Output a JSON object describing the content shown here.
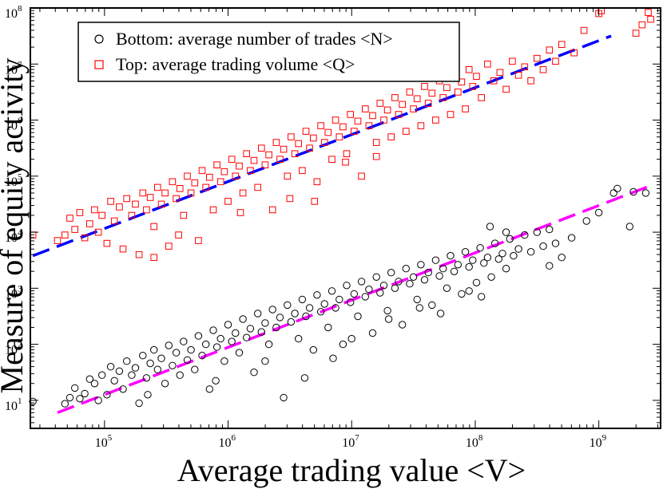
{
  "chart_data": {
    "type": "scatter",
    "xscale": "log",
    "yscale": "log",
    "xlim_exp": [
      4.4,
      9.5
    ],
    "ylim_exp": [
      0.5,
      8
    ],
    "xlabel": "Average trading value <V>",
    "ylabel": "Measure of equity activity",
    "xticks": [
      {
        "exp": 5,
        "base": "10",
        "exp_text": "5"
      },
      {
        "exp": 6,
        "base": "10",
        "exp_text": "6"
      },
      {
        "exp": 7,
        "base": "10",
        "exp_text": "7"
      },
      {
        "exp": 8,
        "base": "10",
        "exp_text": "8"
      },
      {
        "exp": 9,
        "base": "10",
        "exp_text": "9"
      }
    ],
    "yticks": [
      {
        "exp": 1,
        "base": "10",
        "exp_text": "1"
      },
      {
        "exp": 2,
        "base": "10",
        "exp_text": "2"
      },
      {
        "exp": 3,
        "base": "10",
        "exp_text": "3"
      },
      {
        "exp": 4,
        "base": "10",
        "exp_text": "4"
      },
      {
        "exp": 5,
        "base": "10",
        "exp_text": "5"
      },
      {
        "exp": 6,
        "base": "10",
        "exp_text": "6"
      },
      {
        "exp": 7,
        "base": "10",
        "exp_text": "7"
      },
      {
        "exp": 8,
        "base": "10",
        "exp_text": "8"
      }
    ],
    "legend": {
      "position": "top-left",
      "entries": [
        {
          "label": "Bottom: average number of trades <N>",
          "marker": "circle",
          "color": "#000000"
        },
        {
          "label": "Top: average trading volume <Q>",
          "marker": "square",
          "color": "#ff0000"
        }
      ]
    },
    "series": [
      {
        "name": "Bottom: average number of trades <N>",
        "marker": "circle",
        "color": "#000000",
        "points_log10": [
          [
            4.42,
            0.98
          ],
          [
            4.68,
            0.94
          ],
          [
            4.72,
            1.05
          ],
          [
            4.76,
            1.22
          ],
          [
            4.8,
            1.03
          ],
          [
            4.84,
            1.12
          ],
          [
            4.88,
            1.38
          ],
          [
            4.92,
            1.3
          ],
          [
            4.95,
            1.0
          ],
          [
            4.98,
            1.45
          ],
          [
            5.02,
            1.1
          ],
          [
            5.05,
            1.6
          ],
          [
            5.08,
            1.35
          ],
          [
            5.12,
            1.52
          ],
          [
            5.15,
            1.2
          ],
          [
            5.18,
            1.7
          ],
          [
            5.22,
            1.45
          ],
          [
            5.25,
            1.58
          ],
          [
            5.28,
            0.95
          ],
          [
            5.31,
            1.8
          ],
          [
            5.34,
            1.4
          ],
          [
            5.37,
            1.66
          ],
          [
            5.4,
            1.9
          ],
          [
            5.43,
            1.55
          ],
          [
            5.46,
            1.75
          ],
          [
            5.49,
            1.3
          ],
          [
            5.52,
            1.98
          ],
          [
            5.55,
            1.62
          ],
          [
            5.58,
            1.85
          ],
          [
            5.61,
            1.45
          ],
          [
            5.64,
            2.05
          ],
          [
            5.67,
            1.72
          ],
          [
            5.7,
            1.9
          ],
          [
            5.73,
            1.55
          ],
          [
            5.76,
            2.15
          ],
          [
            5.79,
            1.8
          ],
          [
            5.82,
            2.0
          ],
          [
            5.85,
            1.2
          ],
          [
            5.88,
            2.25
          ],
          [
            5.91,
            1.95
          ],
          [
            5.94,
            2.1
          ],
          [
            5.97,
            1.7
          ],
          [
            6.0,
            2.35
          ],
          [
            6.03,
            2.05
          ],
          [
            6.06,
            2.2
          ],
          [
            6.09,
            1.85
          ],
          [
            6.12,
            2.45
          ],
          [
            6.15,
            2.12
          ],
          [
            6.18,
            2.28
          ],
          [
            6.21,
            1.5
          ],
          [
            6.24,
            2.55
          ],
          [
            6.27,
            2.22
          ],
          [
            6.3,
            2.38
          ],
          [
            6.33,
            2.0
          ],
          [
            6.36,
            2.62
          ],
          [
            6.39,
            2.3
          ],
          [
            6.42,
            2.48
          ],
          [
            6.45,
            1.05
          ],
          [
            6.48,
            2.7
          ],
          [
            6.51,
            2.4
          ],
          [
            6.54,
            2.55
          ],
          [
            6.57,
            2.1
          ],
          [
            6.6,
            2.8
          ],
          [
            6.63,
            2.5
          ],
          [
            6.66,
            2.65
          ],
          [
            6.69,
            1.9
          ],
          [
            6.72,
            2.88
          ],
          [
            6.75,
            2.58
          ],
          [
            6.78,
            2.72
          ],
          [
            6.81,
            2.3
          ],
          [
            6.84,
            2.95
          ],
          [
            6.87,
            2.65
          ],
          [
            6.9,
            2.8
          ],
          [
            6.93,
            2.0
          ],
          [
            6.96,
            3.05
          ],
          [
            6.99,
            2.75
          ],
          [
            7.02,
            2.9
          ],
          [
            7.05,
            2.5
          ],
          [
            7.08,
            3.12
          ],
          [
            7.11,
            2.85
          ],
          [
            7.14,
            2.98
          ],
          [
            7.17,
            2.2
          ],
          [
            7.2,
            3.2
          ],
          [
            7.23,
            2.92
          ],
          [
            7.26,
            3.05
          ],
          [
            7.29,
            2.6
          ],
          [
            7.32,
            3.28
          ],
          [
            7.35,
            3.0
          ],
          [
            7.38,
            3.12
          ],
          [
            7.41,
            2.35
          ],
          [
            7.44,
            3.35
          ],
          [
            7.47,
            3.08
          ],
          [
            7.5,
            3.2
          ],
          [
            7.53,
            2.8
          ],
          [
            7.56,
            3.42
          ],
          [
            7.59,
            3.15
          ],
          [
            7.62,
            3.28
          ],
          [
            7.65,
            2.7
          ],
          [
            7.68,
            3.5
          ],
          [
            7.71,
            3.22
          ],
          [
            7.74,
            3.35
          ],
          [
            7.77,
            3.0
          ],
          [
            7.8,
            3.58
          ],
          [
            7.83,
            3.3
          ],
          [
            7.86,
            3.42
          ],
          [
            7.89,
            2.9
          ],
          [
            7.92,
            3.65
          ],
          [
            7.95,
            3.38
          ],
          [
            7.98,
            3.5
          ],
          [
            8.01,
            3.1
          ],
          [
            8.04,
            3.72
          ],
          [
            8.07,
            3.45
          ],
          [
            8.1,
            3.55
          ],
          [
            8.13,
            3.2
          ],
          [
            8.16,
            3.8
          ],
          [
            8.19,
            3.52
          ],
          [
            8.22,
            3.62
          ],
          [
            8.25,
            3.35
          ],
          [
            8.28,
            3.88
          ],
          [
            8.31,
            3.58
          ],
          [
            8.35,
            3.7
          ],
          [
            8.4,
            3.95
          ],
          [
            8.45,
            3.65
          ],
          [
            8.5,
            4.0
          ],
          [
            8.55,
            3.75
          ],
          [
            8.6,
            4.05
          ],
          [
            8.65,
            3.8
          ],
          [
            8.7,
            3.55
          ],
          [
            8.78,
            3.9
          ],
          [
            8.9,
            4.2
          ],
          [
            9.0,
            4.35
          ],
          [
            9.12,
            4.7
          ],
          [
            9.15,
            4.78
          ],
          [
            9.25,
            4.1
          ],
          [
            9.28,
            4.72
          ],
          [
            9.38,
            4.7
          ],
          [
            5.35,
            1.1
          ],
          [
            5.9,
            1.35
          ],
          [
            6.3,
            1.7
          ],
          [
            6.62,
            1.4
          ],
          [
            6.85,
            1.75
          ],
          [
            7.0,
            2.1
          ],
          [
            7.3,
            2.45
          ],
          [
            7.55,
            2.65
          ],
          [
            7.72,
            2.55
          ],
          [
            7.95,
            2.95
          ],
          [
            8.05,
            2.85
          ],
          [
            8.6,
            3.4
          ],
          [
            8.25,
            4.0
          ],
          [
            8.12,
            4.1
          ]
        ]
      },
      {
        "name": "Top: average trading volume <Q>",
        "marker": "square",
        "color": "#ff0000",
        "points_log10": [
          [
            4.42,
            3.95
          ],
          [
            4.62,
            3.85
          ],
          [
            4.68,
            3.95
          ],
          [
            4.72,
            4.25
          ],
          [
            4.76,
            4.05
          ],
          [
            4.8,
            4.35
          ],
          [
            4.84,
            3.9
          ],
          [
            4.88,
            4.15
          ],
          [
            4.92,
            4.4
          ],
          [
            4.95,
            4.0
          ],
          [
            4.98,
            4.3
          ],
          [
            5.02,
            3.8
          ],
          [
            5.05,
            4.55
          ],
          [
            5.08,
            4.2
          ],
          [
            5.12,
            4.45
          ],
          [
            5.15,
            3.7
          ],
          [
            5.18,
            4.6
          ],
          [
            5.22,
            4.3
          ],
          [
            5.25,
            4.5
          ],
          [
            5.28,
            3.6
          ],
          [
            5.31,
            4.7
          ],
          [
            5.34,
            4.4
          ],
          [
            5.37,
            4.62
          ],
          [
            5.4,
            4.1
          ],
          [
            5.43,
            4.8
          ],
          [
            5.46,
            4.5
          ],
          [
            5.49,
            4.7
          ],
          [
            5.52,
            3.75
          ],
          [
            5.55,
            4.9
          ],
          [
            5.58,
            4.6
          ],
          [
            5.61,
            4.78
          ],
          [
            5.64,
            4.3
          ],
          [
            5.67,
            5.0
          ],
          [
            5.7,
            4.7
          ],
          [
            5.73,
            4.88
          ],
          [
            5.76,
            3.85
          ],
          [
            5.79,
            5.1
          ],
          [
            5.82,
            4.8
          ],
          [
            5.85,
            4.98
          ],
          [
            5.88,
            4.4
          ],
          [
            5.91,
            5.2
          ],
          [
            5.94,
            4.9
          ],
          [
            5.97,
            5.08
          ],
          [
            6.0,
            4.55
          ],
          [
            6.03,
            5.3
          ],
          [
            6.06,
            5.0
          ],
          [
            6.09,
            5.18
          ],
          [
            6.12,
            4.7
          ],
          [
            6.15,
            5.4
          ],
          [
            6.18,
            5.1
          ],
          [
            6.21,
            5.28
          ],
          [
            6.24,
            4.8
          ],
          [
            6.27,
            5.5
          ],
          [
            6.3,
            5.2
          ],
          [
            6.33,
            5.38
          ],
          [
            6.36,
            4.4
          ],
          [
            6.39,
            5.6
          ],
          [
            6.42,
            5.3
          ],
          [
            6.45,
            5.48
          ],
          [
            6.48,
            5.0
          ],
          [
            6.51,
            5.7
          ],
          [
            6.54,
            5.4
          ],
          [
            6.57,
            5.58
          ],
          [
            6.6,
            5.1
          ],
          [
            6.63,
            5.8
          ],
          [
            6.66,
            5.5
          ],
          [
            6.69,
            5.68
          ],
          [
            6.72,
            4.9
          ],
          [
            6.75,
            5.9
          ],
          [
            6.78,
            5.6
          ],
          [
            6.81,
            5.78
          ],
          [
            6.84,
            5.3
          ],
          [
            6.87,
            6.0
          ],
          [
            6.9,
            5.7
          ],
          [
            6.93,
            5.88
          ],
          [
            6.96,
            5.4
          ],
          [
            6.99,
            6.1
          ],
          [
            7.02,
            5.8
          ],
          [
            7.05,
            5.98
          ],
          [
            7.08,
            5.0
          ],
          [
            7.11,
            6.2
          ],
          [
            7.14,
            5.9
          ],
          [
            7.17,
            6.08
          ],
          [
            7.2,
            5.6
          ],
          [
            7.23,
            6.3
          ],
          [
            7.26,
            6.0
          ],
          [
            7.29,
            6.18
          ],
          [
            7.32,
            5.7
          ],
          [
            7.35,
            6.4
          ],
          [
            7.38,
            6.1
          ],
          [
            7.41,
            6.28
          ],
          [
            7.44,
            5.8
          ],
          [
            7.47,
            6.5
          ],
          [
            7.5,
            6.2
          ],
          [
            7.53,
            6.38
          ],
          [
            7.56,
            5.9
          ],
          [
            7.59,
            6.6
          ],
          [
            7.62,
            6.3
          ],
          [
            7.65,
            6.48
          ],
          [
            7.68,
            6.0
          ],
          [
            7.71,
            6.7
          ],
          [
            7.74,
            6.4
          ],
          [
            7.77,
            6.58
          ],
          [
            7.8,
            6.1
          ],
          [
            7.83,
            6.8
          ],
          [
            7.86,
            6.5
          ],
          [
            7.89,
            6.68
          ],
          [
            7.92,
            6.2
          ],
          [
            7.95,
            6.9
          ],
          [
            7.98,
            6.6
          ],
          [
            8.01,
            6.78
          ],
          [
            8.05,
            6.4
          ],
          [
            8.1,
            7.0
          ],
          [
            8.15,
            6.7
          ],
          [
            8.2,
            6.85
          ],
          [
            8.25,
            6.55
          ],
          [
            8.3,
            7.05
          ],
          [
            8.35,
            6.8
          ],
          [
            8.4,
            6.95
          ],
          [
            8.45,
            6.7
          ],
          [
            8.5,
            7.1
          ],
          [
            8.55,
            6.9
          ],
          [
            8.6,
            7.25
          ],
          [
            8.65,
            7.05
          ],
          [
            8.7,
            7.35
          ],
          [
            8.8,
            7.2
          ],
          [
            8.88,
            7.6
          ],
          [
            9.0,
            7.9
          ],
          [
            9.02,
            7.95
          ],
          [
            9.3,
            7.55
          ],
          [
            9.35,
            7.7
          ],
          [
            9.4,
            7.92
          ],
          [
            9.42,
            7.8
          ],
          [
            5.4,
            3.55
          ],
          [
            5.6,
            3.95
          ],
          [
            6.1,
            4.35
          ],
          [
            6.5,
            4.6
          ],
          [
            6.7,
            4.55
          ],
          [
            6.95,
            5.25
          ],
          [
            7.2,
            5.35
          ]
        ]
      }
    ],
    "fit_lines": [
      {
        "name": "fit-top",
        "color": "#0000ff",
        "dash": "long",
        "from_log10": [
          4.42,
          3.58
        ],
        "to_log10": [
          9.1,
          7.5
        ]
      },
      {
        "name": "fit-bottom",
        "color": "#ff00ff",
        "dash": "long",
        "from_log10": [
          4.62,
          0.78
        ],
        "to_log10": [
          9.42,
          4.83
        ]
      }
    ]
  }
}
